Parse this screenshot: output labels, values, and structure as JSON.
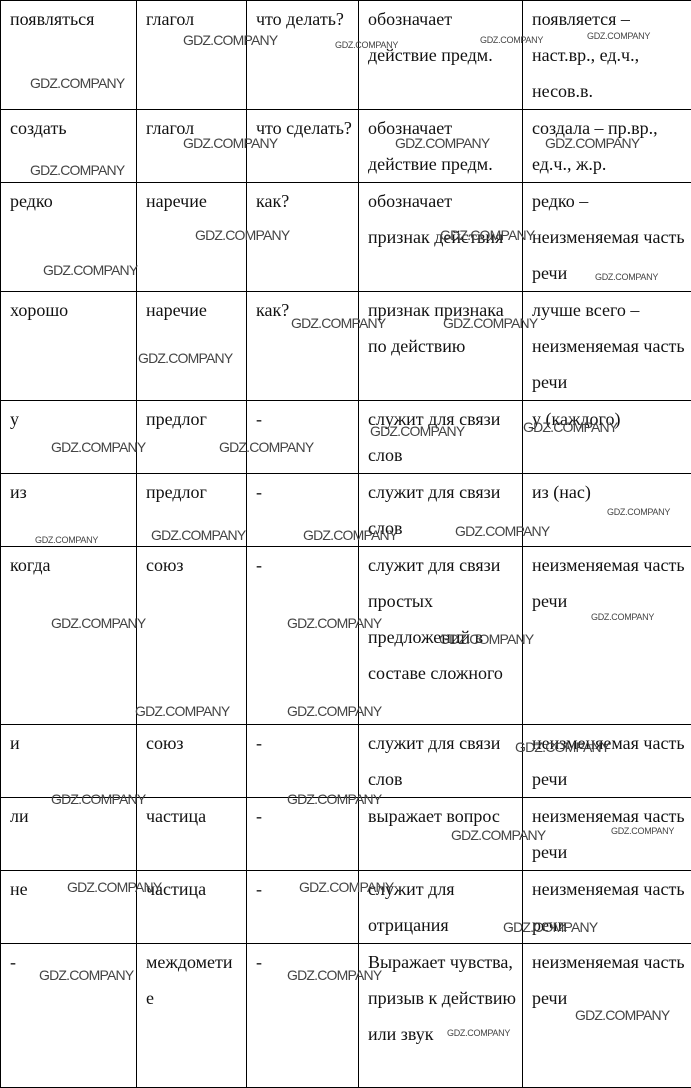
{
  "table": {
    "rows": [
      [
        "появляться",
        "глагол",
        "что делать?",
        "обозначает действие предм.",
        "появляется – наст.вр., ед.ч., несов.в."
      ],
      [
        "создать",
        "глагол",
        "что сделать?",
        "обозначает действие предм.",
        "создала – пр.вр., ед.ч., ж.р."
      ],
      [
        "редко",
        "наречие",
        "как?",
        "обозначает признак действия",
        "редко – неизменяемая часть речи"
      ],
      [
        "хорошо",
        "наречие",
        "как?",
        "признак признака по действию",
        "лучше всего – неизменяемая часть речи"
      ],
      [
        "у",
        "предлог",
        "-",
        "служит для связи слов",
        "у (каждого)"
      ],
      [
        "из",
        "предлог",
        "-",
        "служит для связи слов",
        "из (нас)"
      ],
      [
        "когда",
        "союз",
        "-",
        "служит для связи простых предложений в составе сложного",
        "неизменяемая часть речи"
      ],
      [
        "и",
        "союз",
        "-",
        "служит для связи слов",
        "неизменяемая часть речи"
      ],
      [
        "ли",
        "частица",
        "-",
        "выражает вопрос",
        "неизменяемая часть речи"
      ],
      [
        "не",
        "частица",
        "-",
        "служит для отрицания",
        "неизменяемая часть речи"
      ],
      [
        "-",
        "междометие",
        "-",
        "Выражает чувства, призыв к действию или звук",
        "неизменяемая часть речи"
      ]
    ]
  },
  "watermark": "GDZ.COMPANY"
}
